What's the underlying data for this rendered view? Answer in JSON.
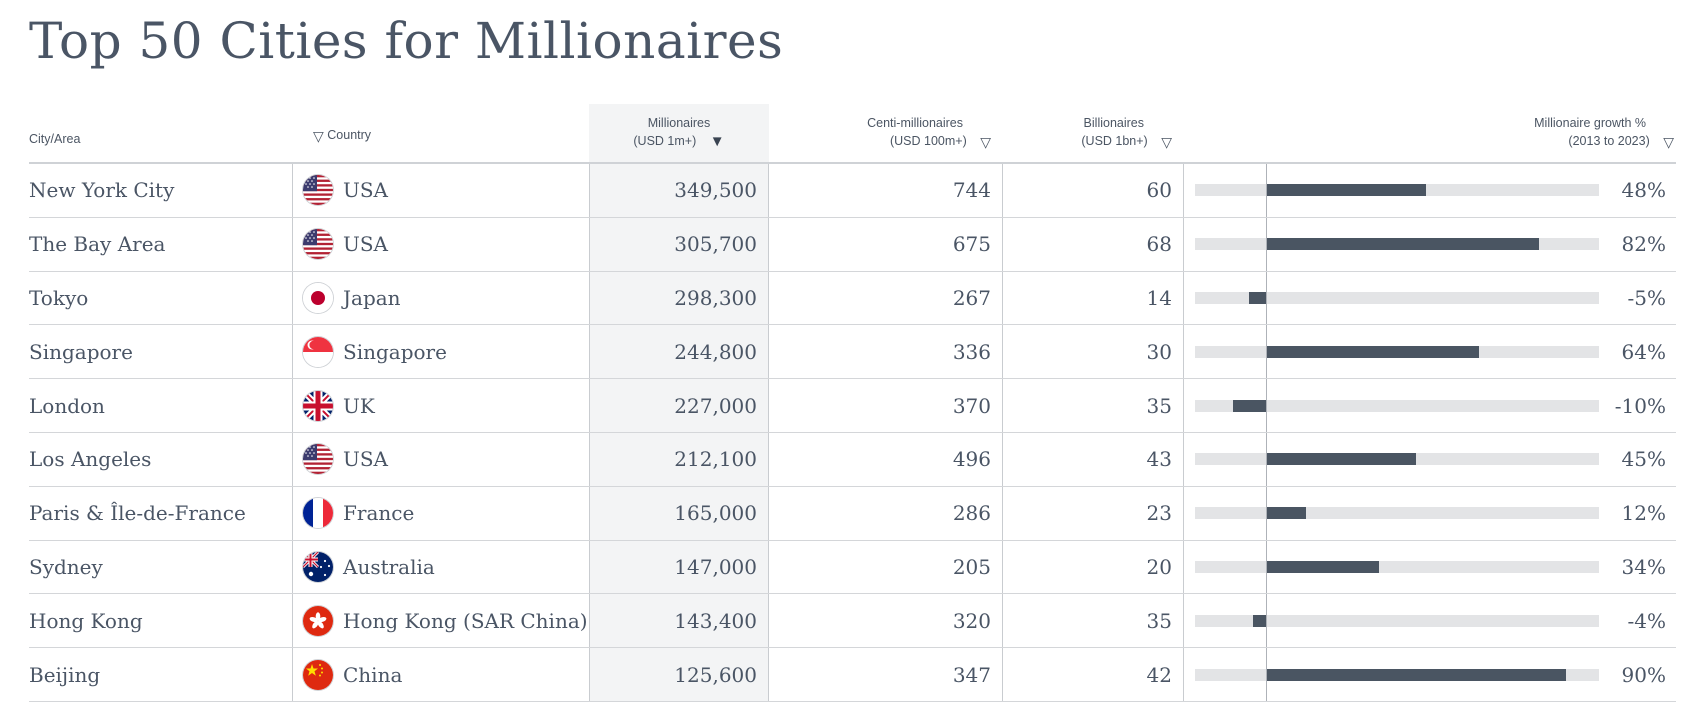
{
  "title": "Top 50 Cities for Millionaires",
  "headers": {
    "city": "City/Area",
    "country": "Country",
    "millionaires_l1": "Millionaires",
    "millionaires_l2": "(USD 1m+)",
    "centi_l1": "Centi-millionaires",
    "centi_l2": "(USD 100m+)",
    "billionaires_l1": "Billionaires",
    "billionaires_l2": "(USD 1bn+)",
    "growth_l1": "Millionaire growth %",
    "growth_l2": "(2013 to 2023)"
  },
  "sort": {
    "column": "millionaires",
    "direction": "descending"
  },
  "colors": {
    "bar_fill": "#4a5562",
    "bar_track": "#e3e4e6",
    "sorted_column_bg": "#f3f4f5",
    "title": "#4a5565"
  },
  "growth_scale": {
    "min": -20,
    "max": 100
  },
  "rows": [
    {
      "city": "New York City",
      "flag": "usa-flag-icon",
      "country": "USA",
      "millionaires": "349,500",
      "centi": "744",
      "billionaires": "60",
      "growth_pct": 48,
      "growth_label": "48%"
    },
    {
      "city": "The Bay Area",
      "flag": "usa-flag-icon",
      "country": "USA",
      "millionaires": "305,700",
      "centi": "675",
      "billionaires": "68",
      "growth_pct": 82,
      "growth_label": "82%"
    },
    {
      "city": "Tokyo",
      "flag": "japan-flag-icon",
      "country": "Japan",
      "millionaires": "298,300",
      "centi": "267",
      "billionaires": "14",
      "growth_pct": -5,
      "growth_label": "-5%"
    },
    {
      "city": "Singapore",
      "flag": "singapore-flag-icon",
      "country": "Singapore",
      "millionaires": "244,800",
      "centi": "336",
      "billionaires": "30",
      "growth_pct": 64,
      "growth_label": "64%"
    },
    {
      "city": "London",
      "flag": "uk-flag-icon",
      "country": "UK",
      "millionaires": "227,000",
      "centi": "370",
      "billionaires": "35",
      "growth_pct": -10,
      "growth_label": "-10%"
    },
    {
      "city": "Los Angeles",
      "flag": "usa-flag-icon",
      "country": "USA",
      "millionaires": "212,100",
      "centi": "496",
      "billionaires": "43",
      "growth_pct": 45,
      "growth_label": "45%"
    },
    {
      "city": "Paris & Île-de-France",
      "flag": "france-flag-icon",
      "country": "France",
      "millionaires": "165,000",
      "centi": "286",
      "billionaires": "23",
      "growth_pct": 12,
      "growth_label": "12%"
    },
    {
      "city": "Sydney",
      "flag": "australia-flag-icon",
      "country": "Australia",
      "millionaires": "147,000",
      "centi": "205",
      "billionaires": "20",
      "growth_pct": 34,
      "growth_label": "34%"
    },
    {
      "city": "Hong Kong",
      "flag": "hong-kong-flag-icon",
      "country": "Hong Kong (SAR China)",
      "millionaires": "143,400",
      "centi": "320",
      "billionaires": "35",
      "growth_pct": -4,
      "growth_label": "-4%"
    },
    {
      "city": "Beijing",
      "flag": "china-flag-icon",
      "country": "China",
      "millionaires": "125,600",
      "centi": "347",
      "billionaires": "42",
      "growth_pct": 90,
      "growth_label": "90%"
    }
  ]
}
